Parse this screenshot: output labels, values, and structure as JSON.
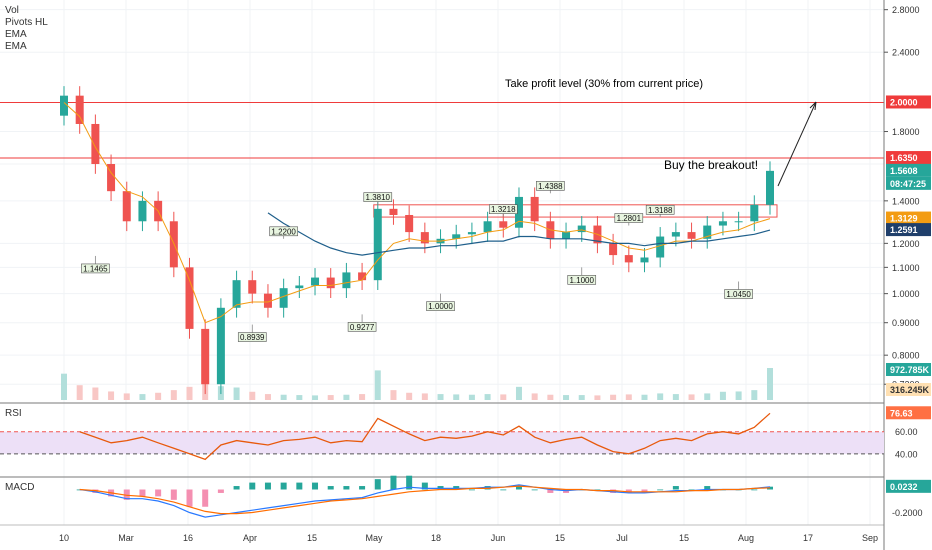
{
  "legend": [
    "Vol",
    "Pivots HL",
    "EMA",
    "EMA"
  ],
  "annotations": {
    "take_profit": "Take profit level (30% from current price)",
    "breakout": "Buy the breakout!"
  },
  "price_axis": {
    "ticks": [
      "2.8000",
      "2.4000",
      "1.8000",
      "1.4000",
      "1.2000",
      "1.1000",
      "1.0000",
      "0.9000",
      "0.8000",
      "0.7200"
    ],
    "take_profit_badge": "2.0000",
    "resistance_badge": "1.6350",
    "last_price_badge": "1.5608",
    "countdown_badge": "08:47:25",
    "ema_fast_badge": "1.3129",
    "ema_slow_badge": "1.2591",
    "volume_badge": "972.785K",
    "volume_ma_badge": "316.245K"
  },
  "rsi": {
    "label": "RSI",
    "ticks": [
      "60.00",
      "40.00"
    ],
    "value_badge": "76.63"
  },
  "macd": {
    "label": "MACD",
    "ticks": [
      "-0.2000"
    ],
    "value_badge": "0.0232"
  },
  "x_axis": [
    "10",
    "Mar",
    "16",
    "Apr",
    "15",
    "May",
    "18",
    "Jun",
    "15",
    "Jul",
    "15",
    "Aug",
    "17",
    "Sep"
  ],
  "pivots": [
    {
      "label": "1.1465",
      "kind": "low",
      "value": 1.1465
    },
    {
      "label": "1.2200",
      "kind": "high",
      "value": 1.22
    },
    {
      "label": "0.8939",
      "kind": "low",
      "value": 0.8939
    },
    {
      "label": "0.9277",
      "kind": "low",
      "value": 0.9277
    },
    {
      "label": "1.3810",
      "kind": "high",
      "value": 1.381
    },
    {
      "label": "1.0000",
      "kind": "low",
      "value": 1.0
    },
    {
      "label": "1.3218",
      "kind": "high",
      "value": 1.3218
    },
    {
      "label": "1.4388",
      "kind": "high",
      "value": 1.4388
    },
    {
      "label": "1.1000",
      "kind": "low",
      "value": 1.1
    },
    {
      "label": "1.2801",
      "kind": "high",
      "value": 1.2801
    },
    {
      "label": "1.3188",
      "kind": "high",
      "value": 1.3188
    },
    {
      "label": "1.0450",
      "kind": "low",
      "value": 1.045
    }
  ],
  "colors": {
    "up": "#26a69a",
    "down": "#ef5350",
    "ema_fast": "#f39c12",
    "ema_slow": "#1f5f8b",
    "rsi_line": "#e8590c",
    "rsi_band": "#ede0f7",
    "macd_line": "#2979ff",
    "signal_line": "#ff6d00",
    "level_line": "#ef3b3b"
  },
  "chart_data": {
    "type": "candlestick",
    "x": [
      "Feb 10",
      "Feb 14",
      "Feb 18",
      "Feb 22",
      "Feb 26",
      "Mar 1",
      "Mar 5",
      "Mar 9",
      "Mar 13",
      "Mar 16",
      "Mar 20",
      "Mar 24",
      "Mar 28",
      "Apr 1",
      "Apr 5",
      "Apr 9",
      "Apr 13",
      "Apr 17",
      "Apr 21",
      "Apr 25",
      "Apr 29",
      "May 3",
      "May 7",
      "May 11",
      "May 15",
      "May 19",
      "May 23",
      "May 27",
      "May 31",
      "Jun 4",
      "Jun 8",
      "Jun 12",
      "Jun 16",
      "Jun 20",
      "Jun 24",
      "Jun 28",
      "Jul 2",
      "Jul 6",
      "Jul 10",
      "Jul 14",
      "Jul 18",
      "Jul 22",
      "Jul 26",
      "Jul 30",
      "Aug 3",
      "Aug 6"
    ],
    "close": [
      2.05,
      1.85,
      1.6,
      1.45,
      1.3,
      1.4,
      1.3,
      1.1,
      0.88,
      0.72,
      0.95,
      1.05,
      1.0,
      0.95,
      1.02,
      1.03,
      1.06,
      1.02,
      1.08,
      1.05,
      1.36,
      1.33,
      1.25,
      1.2,
      1.22,
      1.24,
      1.25,
      1.3,
      1.27,
      1.42,
      1.3,
      1.22,
      1.25,
      1.28,
      1.2,
      1.15,
      1.12,
      1.14,
      1.23,
      1.25,
      1.22,
      1.28,
      1.3,
      1.3,
      1.38,
      1.5608
    ],
    "ema_fast": [
      2.0,
      1.9,
      1.7,
      1.55,
      1.45,
      1.42,
      1.35,
      1.2,
      1.05,
      0.9,
      0.92,
      0.96,
      0.97,
      0.97,
      0.99,
      1.01,
      1.03,
      1.03,
      1.04,
      1.05,
      1.13,
      1.2,
      1.22,
      1.21,
      1.21,
      1.22,
      1.23,
      1.25,
      1.26,
      1.3,
      1.29,
      1.26,
      1.25,
      1.26,
      1.24,
      1.21,
      1.18,
      1.17,
      1.19,
      1.21,
      1.21,
      1.23,
      1.25,
      1.26,
      1.29,
      1.3129
    ],
    "ema_slow": [
      null,
      null,
      null,
      null,
      null,
      null,
      null,
      null,
      null,
      null,
      null,
      null,
      null,
      1.34,
      1.29,
      1.25,
      1.21,
      1.18,
      1.16,
      1.15,
      1.16,
      1.17,
      1.18,
      1.18,
      1.19,
      1.19,
      1.2,
      1.21,
      1.21,
      1.23,
      1.23,
      1.22,
      1.22,
      1.22,
      1.21,
      1.2,
      1.2,
      1.19,
      1.2,
      1.2,
      1.21,
      1.21,
      1.22,
      1.23,
      1.24,
      1.2591
    ],
    "levels": [
      2.0,
      1.635
    ],
    "range_box": [
      1.32,
      1.38
    ],
    "ylim": [
      0.68,
      2.9
    ],
    "y_scale": "log",
    "rsi": [
      null,
      60,
      55,
      50,
      52,
      55,
      50,
      45,
      40,
      35,
      48,
      52,
      50,
      48,
      52,
      53,
      55,
      50,
      52,
      51,
      72,
      65,
      58,
      52,
      55,
      54,
      56,
      60,
      57,
      65,
      55,
      50,
      53,
      55,
      48,
      42,
      40,
      45,
      52,
      54,
      52,
      58,
      60,
      58,
      64,
      76.63
    ],
    "rsi_ylim": [
      20,
      85
    ],
    "macd": [
      null,
      0.0,
      -0.02,
      -0.05,
      -0.08,
      -0.08,
      -0.1,
      -0.14,
      -0.2,
      -0.24,
      -0.22,
      -0.2,
      -0.18,
      -0.16,
      -0.14,
      -0.12,
      -0.1,
      -0.09,
      -0.08,
      -0.07,
      -0.03,
      0.0,
      0.02,
      0.01,
      0.01,
      0.01,
      0.01,
      0.02,
      0.02,
      0.04,
      0.02,
      0.0,
      -0.01,
      0.0,
      -0.01,
      -0.02,
      -0.03,
      -0.03,
      -0.02,
      -0.01,
      -0.01,
      0.0,
      0.0,
      0.0,
      0.01,
      0.0232
    ],
    "macd_signal": [
      null,
      0.0,
      -0.01,
      -0.03,
      -0.05,
      -0.06,
      -0.08,
      -0.11,
      -0.15,
      -0.19,
      -0.21,
      -0.21,
      -0.2,
      -0.18,
      -0.16,
      -0.14,
      -0.12,
      -0.1,
      -0.09,
      -0.08,
      -0.06,
      -0.04,
      -0.02,
      -0.01,
      0.0,
      0.0,
      0.01,
      0.01,
      0.02,
      0.03,
      0.02,
      0.01,
      0.0,
      0.0,
      -0.01,
      -0.01,
      -0.02,
      -0.02,
      -0.02,
      -0.02,
      -0.01,
      -0.01,
      0.0,
      0.0,
      0.01,
      0.015
    ],
    "macd_ylim": [
      -0.3,
      0.1
    ],
    "volume": [
      800,
      450,
      380,
      260,
      200,
      180,
      220,
      300,
      400,
      500,
      420,
      380,
      250,
      180,
      160,
      150,
      140,
      150,
      160,
      180,
      900,
      300,
      220,
      200,
      180,
      170,
      160,
      180,
      170,
      400,
      200,
      160,
      150,
      150,
      140,
      160,
      170,
      160,
      200,
      180,
      170,
      200,
      250,
      260,
      300,
      972.785
    ]
  }
}
